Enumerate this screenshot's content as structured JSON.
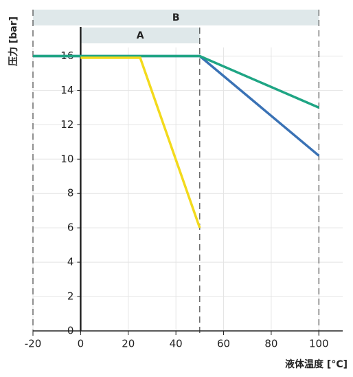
{
  "chart_data": {
    "type": "line",
    "xlabel": "液体温度 [°C]",
    "ylabel": "压力 [bar]",
    "xlim": [
      -20,
      110
    ],
    "ylim": [
      0,
      16.5
    ],
    "xticks": [
      -20,
      0,
      20,
      40,
      60,
      80,
      100
    ],
    "yticks": [
      0,
      2,
      4,
      6,
      8,
      10,
      12,
      14,
      16
    ],
    "grid": true,
    "ranges": [
      {
        "label": "B",
        "from": -20,
        "to": 100
      },
      {
        "label": "A",
        "from": 0,
        "to": 50
      }
    ],
    "series": [
      {
        "color": "#3a72b5",
        "x": [
          -20,
          50,
          100
        ],
        "values": [
          16,
          16,
          10.2
        ]
      },
      {
        "color": "#1fa584",
        "x": [
          -20,
          50,
          100
        ],
        "values": [
          16,
          16,
          13
        ]
      },
      {
        "color": "#f3da1c",
        "x": [
          0,
          25,
          50
        ],
        "values": [
          15.9,
          15.9,
          6
        ]
      }
    ]
  }
}
